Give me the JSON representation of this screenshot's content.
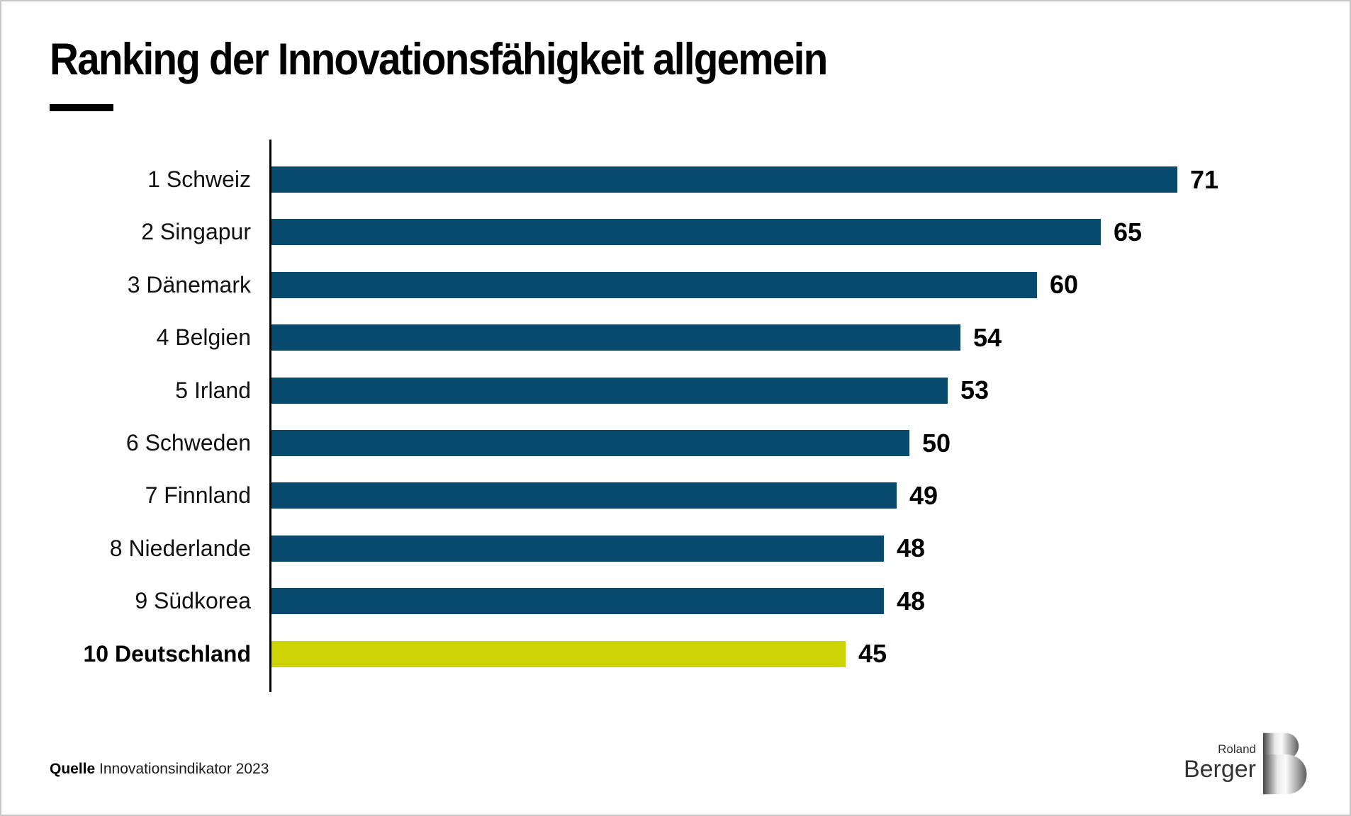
{
  "title": "Ranking der Innovationsfähigkeit allgemein",
  "source": {
    "label": "Quelle",
    "text": "Innovationsindikator 2023"
  },
  "logo": {
    "line1": "Roland",
    "line2": "Berger"
  },
  "colors": {
    "bar": "#074a6e",
    "highlight_bar": "#cdd204",
    "axis": "#000000",
    "title_text": "#000000"
  },
  "chart_data": {
    "type": "bar",
    "orientation": "horizontal",
    "title": "Ranking der Innovationsfähigkeit allgemein",
    "categories": [
      "1 Schweiz",
      "2 Singapur",
      "3 Dänemark",
      "4 Belgien",
      "5 Irland",
      "6 Schweden",
      "7 Finnland",
      "8 Niederlande",
      "9 Südkorea",
      "10 Deutschland"
    ],
    "values": [
      71,
      65,
      60,
      54,
      53,
      50,
      49,
      48,
      48,
      45
    ],
    "highlight_index": 9,
    "highlight_label": "10 Deutschland",
    "xlim": [
      0,
      71
    ],
    "grid": false,
    "legend": false,
    "value_labels": true
  }
}
